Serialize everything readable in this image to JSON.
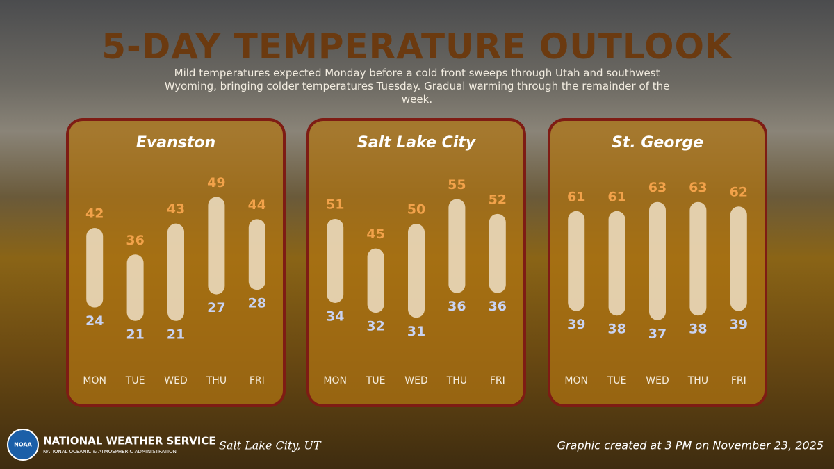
{
  "header": {
    "title": "5-DAY TEMPERATURE OUTLOOK",
    "subtitle": "Mild temperatures expected Monday before a cold front sweeps through Utah and southwest Wyoming, bringing colder temperatures Tuesday. Gradual warming through the remainder of the week."
  },
  "chart_data": [
    {
      "type": "range",
      "title": "Evanston",
      "categories": [
        "MON",
        "TUE",
        "WED",
        "THU",
        "FRI"
      ],
      "series": [
        {
          "color": "#f2a24a",
          "values": [
            42,
            36,
            43,
            49,
            44
          ]
        },
        {
          "color": "#c9d3f2",
          "values": [
            24,
            21,
            21,
            27,
            28
          ]
        }
      ],
      "ylim": [
        15,
        53
      ]
    },
    {
      "type": "range",
      "title": "Salt Lake City",
      "categories": [
        "MON",
        "TUE",
        "WED",
        "THU",
        "FRI"
      ],
      "series": [
        {
          "color": "#f2a24a",
          "values": [
            51,
            45,
            50,
            55,
            52
          ]
        },
        {
          "color": "#c9d3f2",
          "values": [
            34,
            32,
            31,
            36,
            36
          ]
        }
      ],
      "ylim": [
        25,
        59
      ]
    },
    {
      "type": "range",
      "title": "St. George",
      "categories": [
        "MON",
        "TUE",
        "WED",
        "THU",
        "FRI"
      ],
      "series": [
        {
          "color": "#f2a24a",
          "values": [
            61,
            61,
            63,
            63,
            62
          ]
        },
        {
          "color": "#c9d3f2",
          "values": [
            39,
            38,
            37,
            38,
            39
          ]
        }
      ],
      "ylim": [
        31,
        68
      ]
    }
  ],
  "footer": {
    "logo": "NOAA",
    "agency": "NATIONAL WEATHER SERVICE",
    "subagency": "NATIONAL OCEANIC & ATMOSPHERIC ADMINISTRATION",
    "office": "Salt Lake City, UT",
    "credit": "Graphic created at 3 PM on November 23, 2025"
  }
}
